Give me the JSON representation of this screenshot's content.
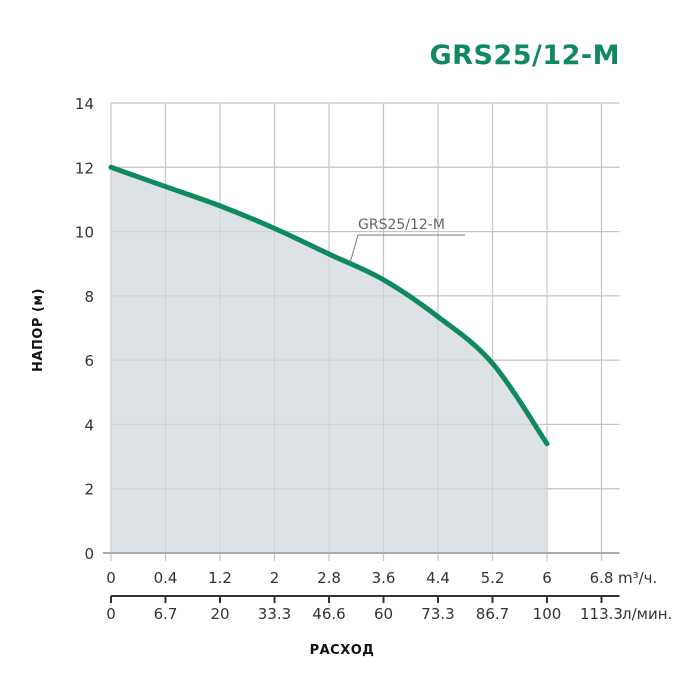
{
  "chart_data": {
    "type": "area",
    "title": "GRS25/12-M",
    "ylabel": "НАПОР (м)",
    "xlabel": "РАСХОД",
    "ylim": [
      0,
      14
    ],
    "yticks": [
      "0",
      "2",
      "4",
      "6",
      "8",
      "10",
      "12",
      "14"
    ],
    "x_axis_primary": {
      "unit": "m³/ч.",
      "ticks": [
        "0",
        "0.4",
        "1.2",
        "2",
        "2.8",
        "3.6",
        "4.4",
        "5.2",
        "6",
        "6.8"
      ]
    },
    "x_axis_secondary": {
      "unit": "л/мин.",
      "ticks": [
        "0",
        "6.7",
        "20",
        "33.3",
        "46.6",
        "60",
        "73.3",
        "86.7",
        "100",
        "113.3"
      ]
    },
    "grid": true,
    "legend": "inline annotation",
    "series": [
      {
        "name": "GRS25/12-M",
        "color": "#0f8a5f",
        "fill": "#dde2e6",
        "x_index": [
          0,
          1,
          2,
          3,
          4,
          5,
          6,
          7,
          8
        ],
        "x_m3h": [
          0,
          0.4,
          1.2,
          2,
          2.8,
          3.6,
          4.4,
          5.2,
          6
        ],
        "values": [
          12.0,
          11.4,
          10.8,
          10.1,
          9.3,
          8.5,
          7.35,
          5.9,
          3.4
        ]
      }
    ]
  },
  "header": {
    "title": "GRS25/12-M"
  },
  "labels": {
    "series_label": "GRS25/12-M",
    "y_axis_title": "НАПОР (м)",
    "x_axis_title": "РАСХОД",
    "x_unit_primary": "m³/ч.",
    "x_unit_secondary": "л/мин."
  },
  "colors": {
    "brand": "#0f8a5f",
    "fill": "#dde2e6",
    "grid": "#c4c4c4",
    "axis": "#999999"
  }
}
